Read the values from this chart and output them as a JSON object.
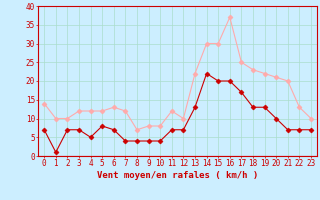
{
  "hours": [
    0,
    1,
    2,
    3,
    4,
    5,
    6,
    7,
    8,
    9,
    10,
    11,
    12,
    13,
    14,
    15,
    16,
    17,
    18,
    19,
    20,
    21,
    22,
    23
  ],
  "wind_avg": [
    7,
    1,
    7,
    7,
    5,
    8,
    7,
    4,
    4,
    4,
    4,
    7,
    7,
    13,
    22,
    20,
    20,
    17,
    13,
    13,
    10,
    7,
    7,
    7
  ],
  "wind_gust": [
    14,
    10,
    10,
    12,
    12,
    12,
    13,
    12,
    7,
    8,
    8,
    12,
    10,
    22,
    30,
    30,
    37,
    25,
    23,
    22,
    21,
    20,
    13,
    10
  ],
  "color_avg": "#cc0000",
  "color_gust": "#ffaaaa",
  "bg_color": "#cceeff",
  "grid_color": "#aaddcc",
  "axis_color": "#cc0000",
  "xlabel": "Vent moyen/en rafales ( km/h )",
  "ylim": [
    0,
    40
  ],
  "yticks": [
    0,
    5,
    10,
    15,
    20,
    25,
    30,
    35,
    40
  ],
  "xlim": [
    -0.5,
    23.5
  ],
  "xlabel_fontsize": 6.5,
  "tick_fontsize": 5.5,
  "marker_size": 2.5,
  "line_width": 0.8
}
